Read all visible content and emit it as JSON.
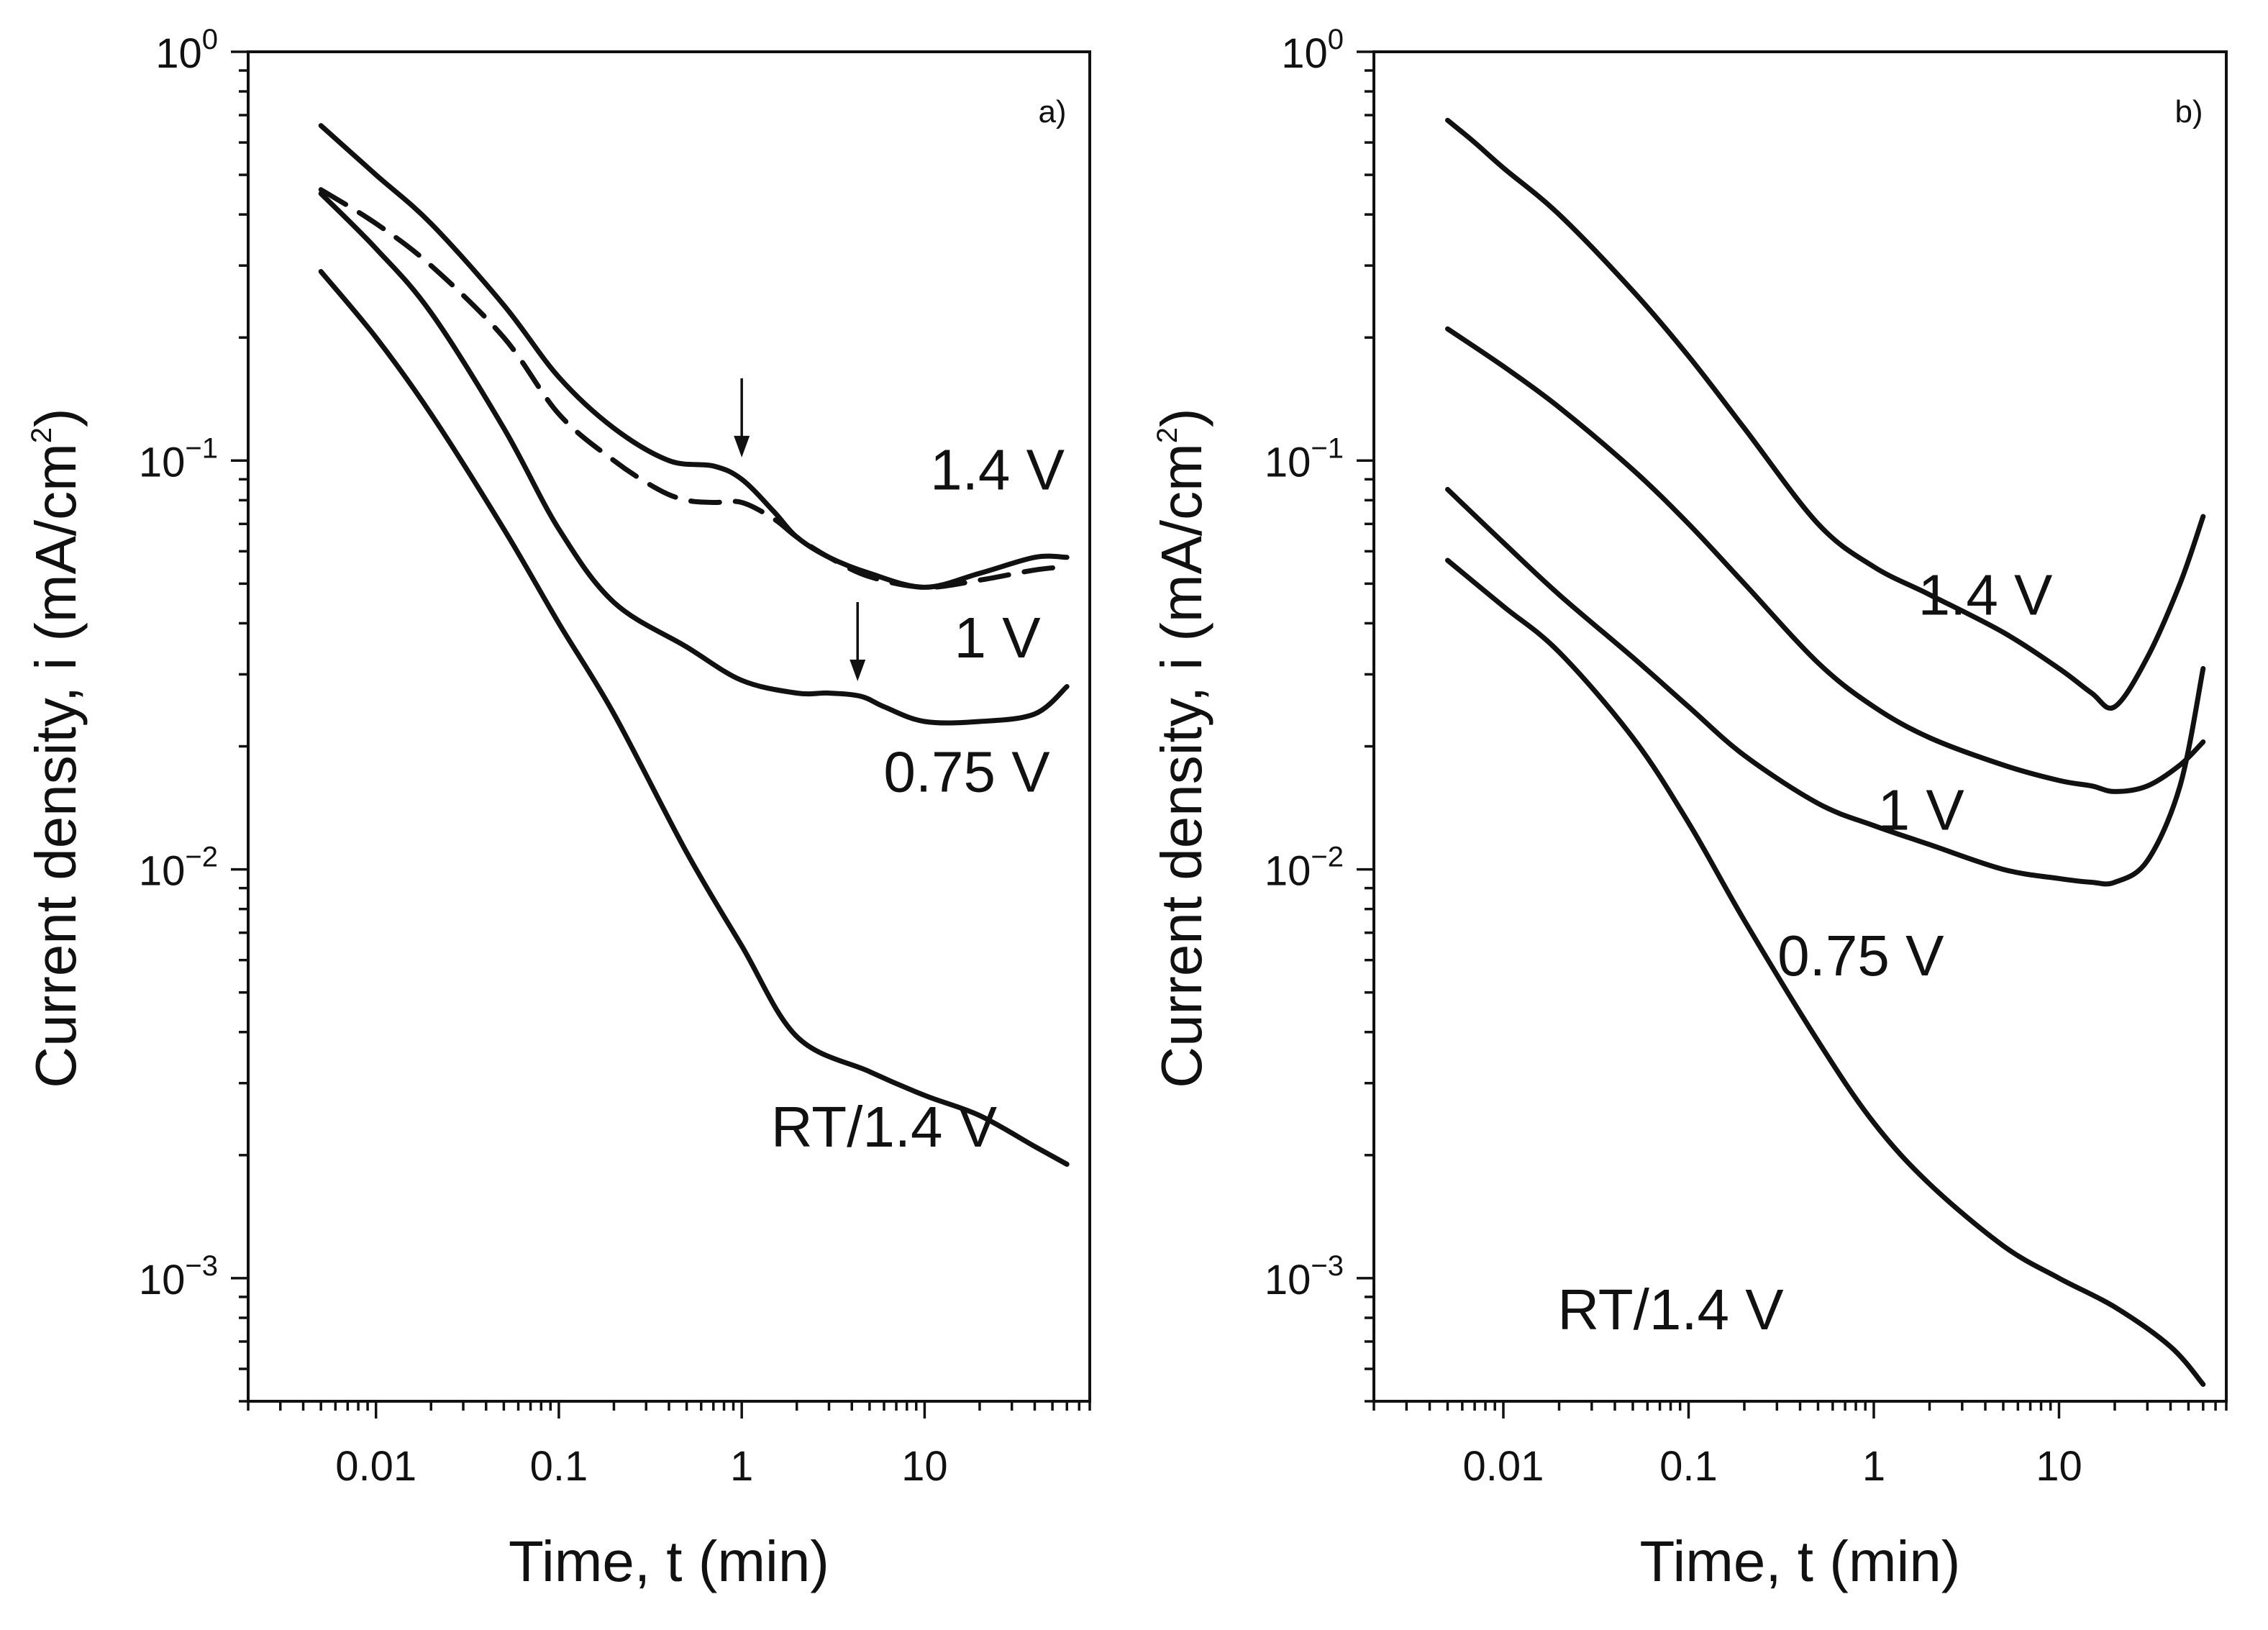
{
  "chart_data": [
    {
      "type": "line",
      "panel_label": "a)",
      "xscale": "log",
      "yscale": "log",
      "xlim": [
        0.002,
        80
      ],
      "ylim": [
        0.0005,
        1
      ],
      "xlabel": "Time, t (min)",
      "ylabel": "Current density, i (mA/cm²)",
      "ylabel_parts": {
        "main": "Current density, i (mA/cm",
        "sup": "2",
        "end": ")"
      },
      "xticks": [
        "0.01",
        "0.1",
        "1",
        "10"
      ],
      "yticks": [
        {
          "base": "10",
          "exp": "0"
        },
        {
          "base": "10",
          "exp": "−1"
        },
        {
          "base": "10",
          "exp": "−2"
        },
        {
          "base": "10",
          "exp": "−3"
        }
      ],
      "grid": false,
      "series": [
        {
          "name": "1.4 V",
          "style": "solid",
          "x": [
            0.005,
            0.01,
            0.02,
            0.05,
            0.1,
            0.2,
            0.4,
            0.7,
            1.0,
            1.5,
            2,
            3,
            5,
            10,
            20,
            40,
            60
          ],
          "y": [
            0.66,
            0.5,
            0.38,
            0.24,
            0.16,
            0.12,
            0.1,
            0.097,
            0.09,
            0.075,
            0.065,
            0.058,
            0.053,
            0.049,
            0.053,
            0.058,
            0.058
          ]
        },
        {
          "name": "1.4 V (dashed)",
          "style": "dashed",
          "x": [
            0.005,
            0.01,
            0.02,
            0.05,
            0.1,
            0.2,
            0.35,
            0.5,
            0.7,
            1.0,
            1.5,
            2,
            3,
            5,
            10,
            20,
            40,
            60
          ],
          "y": [
            0.46,
            0.38,
            0.3,
            0.2,
            0.13,
            0.1,
            0.085,
            0.08,
            0.079,
            0.079,
            0.072,
            0.065,
            0.058,
            0.052,
            0.049,
            0.051,
            0.054,
            0.055
          ]
        },
        {
          "name": "1 V",
          "style": "solid",
          "x": [
            0.005,
            0.01,
            0.02,
            0.05,
            0.1,
            0.2,
            0.5,
            1,
            2,
            3,
            4.5,
            6,
            10,
            20,
            40,
            60
          ],
          "y": [
            0.45,
            0.33,
            0.23,
            0.12,
            0.068,
            0.045,
            0.035,
            0.029,
            0.027,
            0.027,
            0.0265,
            0.025,
            0.023,
            0.023,
            0.024,
            0.028
          ]
        },
        {
          "name": "RT/1.4 V",
          "style": "solid",
          "x": [
            0.005,
            0.01,
            0.02,
            0.05,
            0.1,
            0.2,
            0.5,
            1,
            2,
            5,
            10,
            20,
            40,
            60
          ],
          "y": [
            0.29,
            0.2,
            0.13,
            0.068,
            0.04,
            0.024,
            0.011,
            0.0065,
            0.0039,
            0.0032,
            0.0028,
            0.0025,
            0.0021,
            0.0019
          ]
        }
      ],
      "arrows": [
        {
          "x": 1.0,
          "y_tip": 0.097
        },
        {
          "x": 4.3,
          "y_tip": 0.0275
        }
      ],
      "annotations": [
        {
          "text": "1.4 V",
          "x": 25,
          "y": 0.085
        },
        {
          "text": "1 V",
          "x": 25,
          "y": 0.033
        },
        {
          "text": "0.75 V",
          "x": 17,
          "y": 0.0155
        },
        {
          "text": "RT/1.4 V",
          "x": 6,
          "y": 0.0021
        }
      ]
    },
    {
      "type": "line",
      "panel_label": "b)",
      "xscale": "log",
      "yscale": "log",
      "xlim": [
        0.002,
        80
      ],
      "ylim": [
        0.0005,
        1
      ],
      "xlabel": "Time, t (min)",
      "ylabel": "Current density, i (mA/cm²)",
      "ylabel_parts": {
        "main": "Current density, i (mA/cm",
        "sup": "2",
        "end": ")"
      },
      "xticks": [
        "0.01",
        "0.1",
        "1",
        "10"
      ],
      "yticks": [
        {
          "base": "10",
          "exp": "0"
        },
        {
          "base": "10",
          "exp": "−1"
        },
        {
          "base": "10",
          "exp": "−2"
        },
        {
          "base": "10",
          "exp": "−3"
        }
      ],
      "grid": false,
      "series": [
        {
          "name": "1.4 V",
          "style": "solid",
          "x": [
            0.005,
            0.007,
            0.01,
            0.02,
            0.05,
            0.1,
            0.2,
            0.5,
            1,
            2,
            5,
            10,
            15,
            20,
            30,
            45,
            60
          ],
          "y": [
            0.68,
            0.6,
            0.52,
            0.4,
            0.26,
            0.18,
            0.12,
            0.07,
            0.055,
            0.047,
            0.038,
            0.031,
            0.027,
            0.025,
            0.033,
            0.05,
            0.073
          ]
        },
        {
          "name": "1 V",
          "style": "solid",
          "x": [
            0.005,
            0.01,
            0.02,
            0.05,
            0.1,
            0.2,
            0.5,
            1,
            2,
            5,
            10,
            15,
            20,
            30,
            45,
            60
          ],
          "y": [
            0.21,
            0.17,
            0.135,
            0.095,
            0.07,
            0.05,
            0.032,
            0.025,
            0.021,
            0.018,
            0.0165,
            0.016,
            0.0155,
            0.016,
            0.018,
            0.0205
          ]
        },
        {
          "name": "0.75 V",
          "style": "solid",
          "x": [
            0.005,
            0.01,
            0.02,
            0.05,
            0.1,
            0.2,
            0.5,
            1,
            2,
            5,
            10,
            15,
            20,
            30,
            45,
            60
          ],
          "y": [
            0.085,
            0.063,
            0.047,
            0.033,
            0.025,
            0.019,
            0.0145,
            0.0128,
            0.0115,
            0.01,
            0.0095,
            0.0093,
            0.0093,
            0.0105,
            0.016,
            0.031
          ]
        },
        {
          "name": "RT/1.4 V",
          "style": "solid",
          "x": [
            0.005,
            0.01,
            0.02,
            0.05,
            0.1,
            0.2,
            0.5,
            1,
            2,
            5,
            10,
            20,
            40,
            60
          ],
          "y": [
            0.057,
            0.044,
            0.034,
            0.021,
            0.013,
            0.0075,
            0.0038,
            0.0024,
            0.0017,
            0.0012,
            0.001,
            0.00085,
            0.00068,
            0.00055
          ]
        }
      ],
      "arrows": [],
      "annotations": [
        {
          "text": "1.4 V",
          "x": 4,
          "y": 0.042
        },
        {
          "text": "1 V",
          "x": 1.8,
          "y": 0.0125
        },
        {
          "text": "0.75 V",
          "x": 0.85,
          "y": 0.0055
        },
        {
          "text": "RT/1.4 V",
          "x": 0.08,
          "y": 0.00075
        }
      ]
    }
  ]
}
